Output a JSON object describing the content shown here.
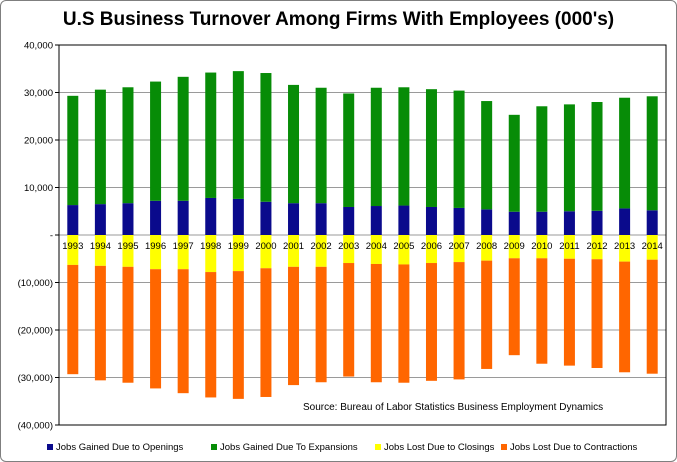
{
  "chart_data": {
    "type": "bar",
    "stacked": true,
    "title": "U.S Business Turnover Among Firms With Employees (000's)",
    "annotation": "Source:  Bureau of Labor Statistics Business Employment Dynamics",
    "ylim": [
      -40000,
      40000
    ],
    "yticks": [
      40000,
      30000,
      20000,
      10000,
      0,
      -10000,
      -20000,
      -30000,
      -40000
    ],
    "ytick_labels": [
      "40,000",
      "30,000",
      "20,000",
      "10,000",
      "-",
      "(10,000)",
      "(20,000)",
      "(30,000)",
      "(40,000)"
    ],
    "grid": true,
    "legend_position": "bottom",
    "categories": [
      "1993",
      "1994",
      "1995",
      "1996",
      "1997",
      "1998",
      "1999",
      "2000",
      "2001",
      "2002",
      "2003",
      "2004",
      "2005",
      "2006",
      "2007",
      "2008",
      "2009",
      "2010",
      "2011",
      "2012",
      "2013",
      "2014"
    ],
    "series": [
      {
        "name": "Jobs Gained Due to Openings",
        "color": "#0a0a8c",
        "values": [
          6300,
          6500,
          6700,
          7200,
          7200,
          7800,
          7600,
          7000,
          6700,
          6700,
          5900,
          6100,
          6200,
          5900,
          5700,
          5400,
          4900,
          4900,
          5000,
          5100,
          5600,
          5200
        ]
      },
      {
        "name": "Jobs Gained Due To Expansions",
        "color": "#078c07",
        "values": [
          23000,
          24100,
          24400,
          25100,
          26100,
          26400,
          26900,
          27100,
          24900,
          24300,
          23900,
          24900,
          24900,
          24800,
          24700,
          22800,
          20400,
          22200,
          22500,
          22900,
          23300,
          24000
        ]
      },
      {
        "name": "Jobs Lost Due to Closings",
        "color": "#ffff00",
        "values": [
          -6300,
          -6500,
          -6700,
          -7200,
          -7200,
          -7800,
          -7600,
          -7000,
          -6700,
          -6700,
          -5900,
          -6100,
          -6200,
          -5900,
          -5700,
          -5400,
          -4900,
          -4900,
          -5000,
          -5100,
          -5600,
          -5200
        ]
      },
      {
        "name": "Jobs Lost Due to Contractions",
        "color": "#ff6600",
        "values": [
          -23000,
          -24100,
          -24400,
          -25100,
          -26100,
          -26400,
          -26900,
          -27100,
          -24900,
          -24300,
          -23900,
          -24900,
          -24900,
          -24800,
          -24700,
          -22800,
          -20400,
          -22200,
          -22500,
          -22900,
          -23300,
          -24000
        ]
      }
    ]
  }
}
